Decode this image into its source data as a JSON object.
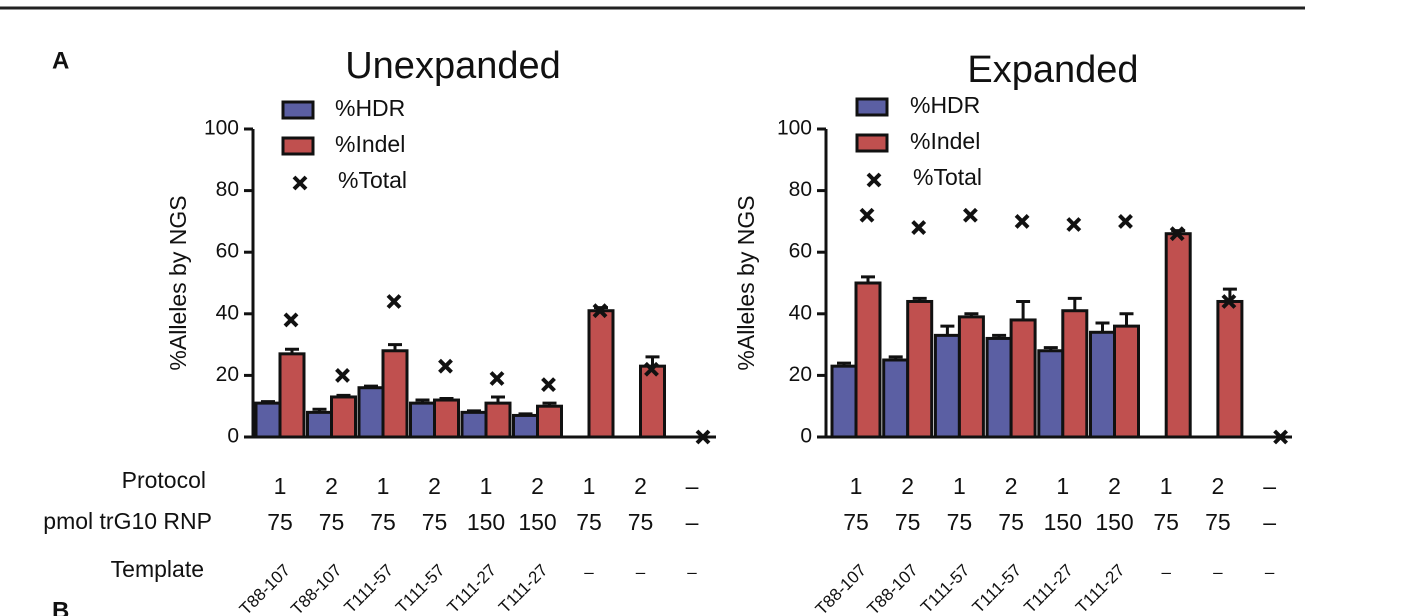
{
  "panel_labels": [
    "A",
    "B"
  ],
  "x_table_labels": [
    "Protocol",
    "pmol trG10 RNP",
    "Template"
  ],
  "chart_data": [
    {
      "type": "bar",
      "title": "Unexpanded",
      "ylabel": "%Alleles by NGS",
      "ylim": [
        0,
        100
      ],
      "yticks": [
        0,
        20,
        40,
        60,
        80,
        100
      ],
      "x_table": {
        "protocol": [
          "1",
          "2",
          "1",
          "2",
          "1",
          "2",
          "1",
          "2",
          "–"
        ],
        "rnp": [
          "75",
          "75",
          "75",
          "75",
          "150",
          "150",
          "75",
          "75",
          "–"
        ],
        "template": [
          "T88-107",
          "T88-107",
          "T111-57",
          "T111-57",
          "T111-27",
          "T111-27",
          "–",
          "–",
          "–"
        ]
      },
      "series": [
        {
          "name": "%HDR",
          "color": "#5b5fa3",
          "values": [
            11,
            8,
            16,
            11,
            8,
            7,
            0,
            0,
            0
          ],
          "errors": [
            0.5,
            1,
            0.5,
            1,
            0.5,
            0.5,
            0,
            0,
            0
          ]
        },
        {
          "name": "%Indel",
          "color": "#c0504f",
          "values": [
            27,
            13,
            28,
            12,
            11,
            10,
            41,
            23,
            0
          ],
          "errors": [
            1.5,
            0.5,
            2,
            0.5,
            2,
            1,
            1,
            3,
            0
          ]
        },
        {
          "name": "%Total",
          "color": "#111111",
          "marker": "x",
          "values": [
            38,
            20,
            44,
            23,
            19,
            17,
            41,
            22,
            0
          ]
        }
      ]
    },
    {
      "type": "bar",
      "title": "Expanded",
      "ylabel": "%Alleles by NGS",
      "ylim": [
        0,
        100
      ],
      "yticks": [
        0,
        20,
        40,
        60,
        80,
        100
      ],
      "x_table": {
        "protocol": [
          "1",
          "2",
          "1",
          "2",
          "1",
          "2",
          "1",
          "2",
          "–"
        ],
        "rnp": [
          "75",
          "75",
          "75",
          "75",
          "150",
          "150",
          "75",
          "75",
          "–"
        ],
        "template": [
          "T88-107",
          "T88-107",
          "T111-57",
          "T111-57",
          "T111-27",
          "T111-27",
          "–",
          "–",
          "–"
        ]
      },
      "series": [
        {
          "name": "%HDR",
          "color": "#5b5fa3",
          "values": [
            23,
            25,
            33,
            32,
            28,
            34,
            0,
            0,
            0
          ],
          "errors": [
            1,
            1,
            3,
            1,
            1,
            3,
            0,
            0,
            0
          ]
        },
        {
          "name": "%Indel",
          "color": "#c0504f",
          "values": [
            50,
            44,
            39,
            38,
            41,
            36,
            66,
            44,
            0
          ],
          "errors": [
            2,
            1,
            1,
            6,
            4,
            4,
            1,
            4,
            0
          ]
        },
        {
          "name": "%Total",
          "color": "#111111",
          "marker": "x",
          "values": [
            72,
            68,
            72,
            70,
            69,
            70,
            66,
            44,
            0
          ]
        }
      ]
    }
  ]
}
